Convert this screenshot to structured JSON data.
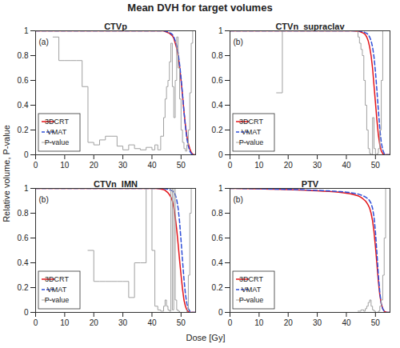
{
  "title": "Mean DVH for target volumes",
  "x_label": "Dose [Gy]",
  "y_label": "Relative volume, P-value",
  "chart_data": [
    {
      "type": "line",
      "title": "CTVp",
      "annotation": "(a)",
      "x": [
        0,
        2,
        4,
        6,
        8,
        10,
        12,
        14,
        16,
        18,
        20,
        22,
        24,
        26,
        28,
        30,
        32,
        34,
        36,
        38,
        40,
        41,
        42,
        43,
        44,
        44.5,
        45,
        45.5,
        46,
        46.5,
        47,
        47.5,
        48,
        48.5,
        49,
        49.5,
        50,
        50.5,
        51,
        51.5,
        52,
        52.5,
        53,
        53.5,
        54,
        54.5,
        55
      ],
      "series": [
        {
          "name": "3DCRT",
          "color": "#e3151a",
          "line_style": "solid",
          "values": [
            1,
            1,
            1,
            1,
            1,
            1,
            1,
            1,
            1,
            1,
            1,
            1,
            1,
            1,
            1,
            1,
            1,
            1,
            1,
            1,
            1,
            1,
            1,
            1,
            1,
            0.995,
            0.99,
            0.985,
            0.98,
            0.97,
            0.96,
            0.94,
            0.9,
            0.86,
            0.8,
            0.71,
            0.6,
            0.48,
            0.35,
            0.24,
            0.15,
            0.09,
            0.05,
            0.02,
            0.005,
            0,
            0
          ]
        },
        {
          "name": "VMAT",
          "color": "#2f4fd8",
          "line_style": "dashed",
          "values": [
            1,
            1,
            1,
            1,
            1,
            1,
            1,
            1,
            1,
            1,
            1,
            1,
            1,
            1,
            1,
            1,
            1,
            1,
            1,
            1,
            1,
            1,
            1,
            1,
            1,
            0.998,
            0.995,
            0.99,
            0.985,
            0.98,
            0.97,
            0.95,
            0.92,
            0.88,
            0.82,
            0.73,
            0.62,
            0.49,
            0.35,
            0.23,
            0.13,
            0.07,
            0.03,
            0.01,
            0.003,
            0,
            0
          ]
        },
        {
          "name": "P-value",
          "color": "#a0a0a0",
          "line_style": "steps",
          "values": [
            null,
            null,
            null,
            0.95,
            0.76,
            0.76,
            0.76,
            0.76,
            0.55,
            0.1,
            0.08,
            0.12,
            0.15,
            0.15,
            0.07,
            0.04,
            0.08,
            0.05,
            0.04,
            0.06,
            0.04,
            0.08,
            0.04,
            0.15,
            0.3,
            0.45,
            0.55,
            0.6,
            0.75,
            0.9,
            0.55,
            0.3,
            0.6,
            0.95,
            0.7,
            0.45,
            0.2,
            0.1,
            0.05,
            0.03,
            0.08,
            0.2,
            0.5,
            0.9,
            1,
            1,
            1
          ]
        }
      ],
      "xlim": [
        0,
        55
      ],
      "xticks": [
        0,
        10,
        20,
        30,
        40,
        50
      ],
      "ylim": [
        0,
        1
      ],
      "yticks": [
        0,
        0.2,
        0.4,
        0.6,
        0.8,
        1
      ],
      "legend": "lower left"
    },
    {
      "type": "line",
      "title": "CTVn_supraclav",
      "annotation": "(b)",
      "x": [
        0,
        2,
        4,
        6,
        8,
        10,
        12,
        14,
        16,
        18,
        20,
        22,
        24,
        26,
        28,
        30,
        32,
        34,
        36,
        38,
        40,
        41,
        42,
        43,
        44,
        44.5,
        45,
        45.5,
        46,
        46.5,
        47,
        47.5,
        48,
        48.5,
        49,
        49.5,
        50,
        50.5,
        51,
        51.5,
        52,
        52.5,
        53,
        53.5,
        54,
        54.5,
        55
      ],
      "series": [
        {
          "name": "3DCRT",
          "color": "#e3151a",
          "line_style": "solid",
          "values": [
            1,
            1,
            1,
            1,
            1,
            1,
            1,
            1,
            1,
            1,
            1,
            1,
            1,
            1,
            1,
            1,
            1,
            1,
            1,
            1,
            1,
            1,
            1,
            0.998,
            0.997,
            0.995,
            0.99,
            0.985,
            0.98,
            0.97,
            0.95,
            0.92,
            0.87,
            0.8,
            0.7,
            0.56,
            0.42,
            0.28,
            0.16,
            0.08,
            0.03,
            0.01,
            0,
            0,
            0,
            0,
            0
          ]
        },
        {
          "name": "VMAT",
          "color": "#2f4fd8",
          "line_style": "dashed",
          "values": [
            1,
            1,
            1,
            1,
            1,
            1,
            1,
            1,
            1,
            1,
            1,
            1,
            1,
            1,
            1,
            1,
            1,
            1,
            1,
            1,
            1,
            1,
            1,
            1,
            1,
            0.998,
            0.997,
            0.995,
            0.99,
            0.985,
            0.98,
            0.97,
            0.95,
            0.92,
            0.87,
            0.79,
            0.67,
            0.52,
            0.36,
            0.21,
            0.1,
            0.04,
            0.01,
            0,
            0,
            0,
            0
          ]
        },
        {
          "name": "P-value",
          "color": "#a0a0a0",
          "line_style": "steps",
          "values": [
            null,
            null,
            null,
            null,
            null,
            null,
            null,
            null,
            0.5,
            1,
            1,
            1,
            1,
            1,
            1,
            1,
            1,
            1,
            1,
            1,
            1,
            1,
            1,
            1,
            0.95,
            0.9,
            0.85,
            0.8,
            0.6,
            0.4,
            0.2,
            0.05,
            0.01,
            0,
            0.3,
            0.05,
            0,
            0.01,
            0.05,
            0.2,
            0.6,
            1,
            1,
            1,
            1,
            1,
            1
          ]
        }
      ],
      "xlim": [
        0,
        55
      ],
      "xticks": [
        0,
        10,
        20,
        30,
        40,
        50
      ],
      "ylim": [
        0,
        1
      ],
      "yticks": [
        0,
        0.2,
        0.4,
        0.6,
        0.8,
        1
      ],
      "legend": "lower left"
    },
    {
      "type": "line",
      "title": "CTVn_IMN",
      "annotation": "(b)",
      "x": [
        0,
        2,
        4,
        6,
        8,
        10,
        12,
        14,
        16,
        18,
        20,
        22,
        24,
        26,
        28,
        30,
        32,
        34,
        36,
        38,
        40,
        41,
        42,
        43,
        44,
        44.5,
        45,
        45.5,
        46,
        46.5,
        47,
        47.5,
        48,
        48.5,
        49,
        49.5,
        50,
        50.5,
        51,
        51.5,
        52,
        52.5,
        53,
        53.5,
        54,
        54.5,
        55
      ],
      "series": [
        {
          "name": "3DCRT",
          "color": "#e3151a",
          "line_style": "solid",
          "values": [
            1,
            1,
            1,
            1,
            1,
            1,
            1,
            1,
            1,
            1,
            1,
            1,
            1,
            1,
            1,
            1,
            1,
            1,
            1,
            1,
            1,
            1,
            0.998,
            0.995,
            0.99,
            0.985,
            0.975,
            0.965,
            0.95,
            0.93,
            0.9,
            0.85,
            0.77,
            0.67,
            0.55,
            0.42,
            0.3,
            0.19,
            0.1,
            0.05,
            0.02,
            0.005,
            0,
            0,
            0,
            0,
            0
          ]
        },
        {
          "name": "VMAT",
          "color": "#2f4fd8",
          "line_style": "dashed",
          "values": [
            1,
            1,
            1,
            1,
            1,
            1,
            1,
            1,
            1,
            1,
            1,
            1,
            1,
            1,
            1,
            1,
            1,
            1,
            1,
            1,
            1,
            1,
            1,
            1,
            0.998,
            0.997,
            0.995,
            0.993,
            0.99,
            0.985,
            0.98,
            0.97,
            0.95,
            0.91,
            0.84,
            0.73,
            0.58,
            0.42,
            0.27,
            0.15,
            0.07,
            0.03,
            0.01,
            0,
            0,
            0,
            0
          ]
        },
        {
          "name": "P-value",
          "color": "#a0a0a0",
          "line_style": "steps",
          "values": [
            null,
            null,
            null,
            null,
            null,
            null,
            null,
            null,
            null,
            0.5,
            0.25,
            0.25,
            0.25,
            0.25,
            0.25,
            0.25,
            0.12,
            0.4,
            0.4,
            1,
            0.5,
            0.05,
            0.02,
            0.01,
            0.05,
            0.1,
            0.05,
            0.02,
            0.01,
            1,
            0.02,
            1,
            0.1,
            0.02,
            0.01,
            0,
            0,
            0,
            0,
            0,
            0.02,
            0.3,
            0.8,
            1,
            1,
            1,
            1
          ]
        }
      ],
      "xlim": [
        0,
        55
      ],
      "xticks": [
        0,
        10,
        20,
        30,
        40,
        50
      ],
      "ylim": [
        0,
        1
      ],
      "yticks": [
        0,
        0.2,
        0.4,
        0.6,
        0.8,
        1
      ],
      "legend": "lower left"
    },
    {
      "type": "line",
      "title": "PTV",
      "annotation": "(b)",
      "x": [
        0,
        2,
        4,
        6,
        8,
        10,
        12,
        14,
        16,
        18,
        20,
        22,
        24,
        26,
        28,
        30,
        32,
        34,
        36,
        38,
        40,
        41,
        42,
        43,
        44,
        44.5,
        45,
        45.5,
        46,
        46.5,
        47,
        47.5,
        48,
        48.5,
        49,
        49.5,
        50,
        50.5,
        51,
        51.5,
        52,
        52.5,
        53,
        53.5,
        54,
        54.5,
        55
      ],
      "series": [
        {
          "name": "3DCRT",
          "color": "#e3151a",
          "line_style": "solid",
          "values": [
            1,
            1,
            0.999,
            0.998,
            0.997,
            0.996,
            0.995,
            0.994,
            0.993,
            0.992,
            0.99,
            0.989,
            0.987,
            0.985,
            0.983,
            0.98,
            0.978,
            0.975,
            0.972,
            0.968,
            0.962,
            0.958,
            0.953,
            0.947,
            0.94,
            0.935,
            0.928,
            0.92,
            0.91,
            0.9,
            0.885,
            0.865,
            0.84,
            0.8,
            0.74,
            0.65,
            0.53,
            0.39,
            0.25,
            0.14,
            0.07,
            0.03,
            0.01,
            0.003,
            0,
            0,
            0
          ]
        },
        {
          "name": "VMAT",
          "color": "#2f4fd8",
          "line_style": "dashed",
          "values": [
            1,
            1,
            0.999,
            0.998,
            0.998,
            0.997,
            0.996,
            0.995,
            0.994,
            0.993,
            0.992,
            0.991,
            0.99,
            0.988,
            0.986,
            0.984,
            0.982,
            0.98,
            0.977,
            0.974,
            0.97,
            0.967,
            0.963,
            0.959,
            0.955,
            0.951,
            0.947,
            0.942,
            0.937,
            0.931,
            0.924,
            0.915,
            0.9,
            0.88,
            0.84,
            0.77,
            0.65,
            0.48,
            0.3,
            0.16,
            0.07,
            0.03,
            0.01,
            0,
            0,
            0,
            0
          ]
        },
        {
          "name": "P-value",
          "color": "#a0a0a0",
          "line_style": "steps",
          "values": [
            null,
            null,
            null,
            null,
            null,
            null,
            null,
            null,
            null,
            null,
            null,
            null,
            null,
            null,
            null,
            null,
            null,
            null,
            null,
            null,
            null,
            null,
            null,
            null,
            0.01,
            0.01,
            0.02,
            0.02,
            0.01,
            0.03,
            0.05,
            0.08,
            0.1,
            0.05,
            0.02,
            0.01,
            0,
            0,
            0.01,
            0.05,
            0.1,
            0.3,
            0.6,
            1,
            1,
            1,
            1
          ]
        }
      ],
      "xlim": [
        0,
        55
      ],
      "xticks": [
        0,
        10,
        20,
        30,
        40,
        50
      ],
      "ylim": [
        0,
        1
      ],
      "yticks": [
        0,
        0.2,
        0.4,
        0.6,
        0.8,
        1
      ],
      "legend": "lower left"
    }
  ]
}
